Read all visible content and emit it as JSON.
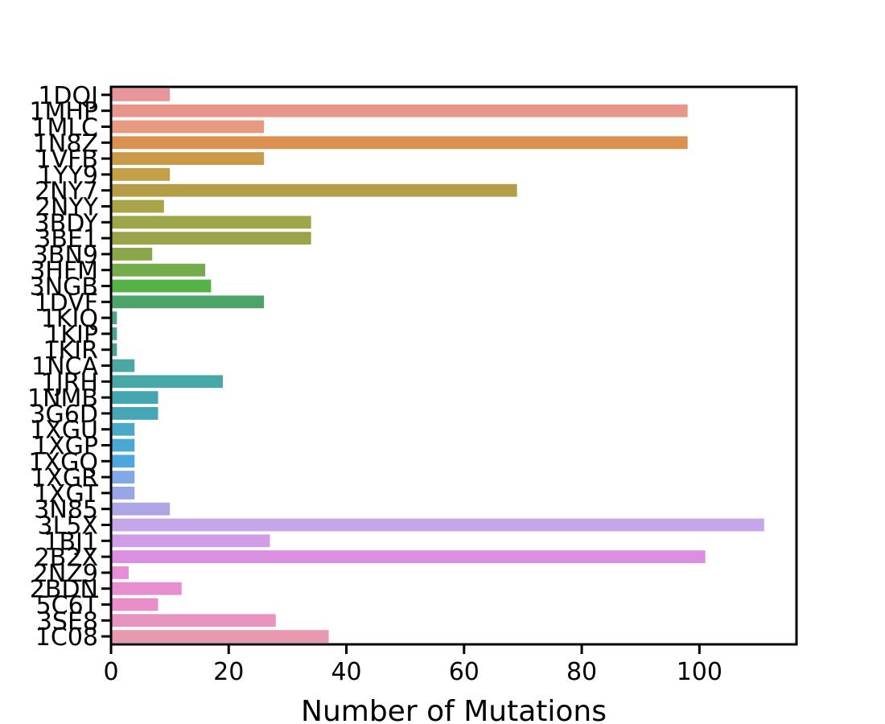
{
  "chart_data": {
    "type": "bar",
    "orientation": "horizontal",
    "title": "",
    "xlabel": "Number of Mutations",
    "ylabel": "",
    "xlim": [
      0,
      116.5
    ],
    "xticks": [
      0,
      20,
      40,
      60,
      80,
      100
    ],
    "grid": false,
    "categories": [
      "1DQJ",
      "1MHP",
      "1MLC",
      "1N8Z",
      "1VFB",
      "1YY9",
      "2NY7",
      "2NYY",
      "3BDY",
      "3BE1",
      "3BN9",
      "3HFM",
      "3NGB",
      "1DVF",
      "1KIQ",
      "1KIP",
      "1KIR",
      "1NCA",
      "1JRH",
      "1NMB",
      "3G6D",
      "1XGU",
      "1XGP",
      "1XGQ",
      "1XGR",
      "1XGT",
      "3N85",
      "3L5X",
      "1BJ1",
      "2B2X",
      "2NZ9",
      "2BDN",
      "5C6T",
      "3SE8",
      "1C08"
    ],
    "values": [
      10,
      98,
      26,
      98,
      26,
      10,
      69,
      9,
      34,
      34,
      7,
      16,
      17,
      26,
      1,
      1,
      1,
      4,
      19,
      8,
      8,
      4,
      4,
      4,
      4,
      4,
      10,
      111,
      27,
      101,
      3,
      12,
      8,
      28,
      37
    ],
    "colors": [
      "#e8959a",
      "#e8958a",
      "#e89a80",
      "#dc9150",
      "#c99a48",
      "#c3a048",
      "#b59c46",
      "#a9a447",
      "#9fa648",
      "#98a447",
      "#8aa849",
      "#74ab4d",
      "#54b248",
      "#4da46a",
      "#4aa58a",
      "#49a591",
      "#49a496",
      "#4aa7a4",
      "#48a8a8",
      "#46a6b0",
      "#45a7b5",
      "#4aa8c8",
      "#4ba8d2",
      "#4ea6e0",
      "#82a8e8",
      "#9aa5e5",
      "#ada5e8",
      "#c5a6e9",
      "#d19de6",
      "#dc8ee0",
      "#e68ed8",
      "#e68ed0",
      "#e98ec8",
      "#e994c0",
      "#e799ae"
    ]
  }
}
